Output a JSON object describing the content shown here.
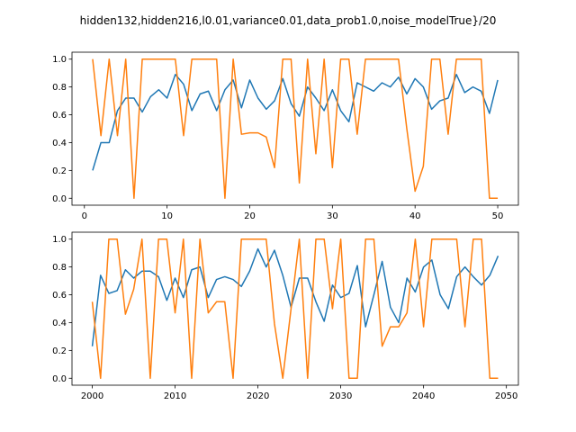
{
  "title": "hidden132,hidden216,l0.01,variance0.01,data_prob1.0,noise_modelTrue}/20",
  "colors": {
    "series_blue": "#1f77b4",
    "series_orange": "#ff7f0e"
  },
  "chart_data": [
    {
      "type": "line",
      "xlim": [
        -1.5,
        52.5
      ],
      "ylim": [
        -0.05,
        1.05
      ],
      "xticks": [
        0,
        10,
        20,
        30,
        40,
        50
      ],
      "yticks": [
        0.0,
        0.2,
        0.4,
        0.6,
        0.8,
        1.0
      ],
      "xtick_labels": [
        "0",
        "10",
        "20",
        "30",
        "40",
        "50"
      ],
      "ytick_labels": [
        "0.0",
        "0.2",
        "0.4",
        "0.6",
        "0.8",
        "1.0"
      ],
      "x": [
        1,
        2,
        3,
        4,
        5,
        6,
        7,
        8,
        9,
        10,
        11,
        12,
        13,
        14,
        15,
        16,
        17,
        18,
        19,
        20,
        21,
        22,
        23,
        24,
        25,
        26,
        27,
        28,
        29,
        30,
        31,
        32,
        33,
        34,
        35,
        36,
        37,
        38,
        39,
        40,
        41,
        42,
        43,
        44,
        45,
        46,
        47,
        48,
        49,
        50
      ],
      "series": [
        {
          "values": [
            0.2,
            0.4,
            0.4,
            0.63,
            0.72,
            0.72,
            0.62,
            0.73,
            0.78,
            0.72,
            0.89,
            0.82,
            0.63,
            0.75,
            0.77,
            0.63,
            0.78,
            0.85,
            0.65,
            0.85,
            0.72,
            0.64,
            0.7,
            0.86,
            0.68,
            0.59,
            0.8,
            0.72,
            0.63,
            0.78,
            0.63,
            0.55,
            0.83,
            0.8,
            0.77,
            0.83,
            0.8,
            0.87,
            0.75,
            0.86,
            0.8,
            0.64,
            0.7,
            0.72,
            0.89,
            0.76,
            0.8,
            0.77,
            0.61,
            0.85
          ]
        },
        {
          "values": [
            1.0,
            0.45,
            1.0,
            0.45,
            1.0,
            0.0,
            1.0,
            1.0,
            1.0,
            1.0,
            1.0,
            0.45,
            1.0,
            1.0,
            1.0,
            1.0,
            0.0,
            1.0,
            0.46,
            0.47,
            0.47,
            0.44,
            0.22,
            1.0,
            1.0,
            0.11,
            1.0,
            0.32,
            1.0,
            0.22,
            1.0,
            1.0,
            0.46,
            1.0,
            1.0,
            1.0,
            1.0,
            1.0,
            0.5,
            0.05,
            0.23,
            1.0,
            1.0,
            0.46,
            1.0,
            1.0,
            1.0,
            1.0,
            0.0,
            0.0
          ]
        }
      ]
    },
    {
      "type": "line",
      "xlim": [
        1997.55,
        2051.45
      ],
      "ylim": [
        -0.05,
        1.05
      ],
      "xticks": [
        2000,
        2010,
        2020,
        2030,
        2040,
        2050
      ],
      "yticks": [
        0.0,
        0.2,
        0.4,
        0.6,
        0.8,
        1.0
      ],
      "xtick_labels": [
        "2000",
        "2010",
        "2020",
        "2030",
        "2040",
        "2050"
      ],
      "ytick_labels": [
        "0.0",
        "0.2",
        "0.4",
        "0.6",
        "0.8",
        "1.0"
      ],
      "x": [
        2000,
        2001,
        2002,
        2003,
        2004,
        2005,
        2006,
        2007,
        2008,
        2009,
        2010,
        2011,
        2012,
        2013,
        2014,
        2015,
        2016,
        2017,
        2018,
        2019,
        2020,
        2021,
        2022,
        2023,
        2024,
        2025,
        2026,
        2027,
        2028,
        2029,
        2030,
        2031,
        2032,
        2033,
        2034,
        2035,
        2036,
        2037,
        2038,
        2039,
        2040,
        2041,
        2042,
        2043,
        2044,
        2045,
        2046,
        2047,
        2048,
        2049
      ],
      "series": [
        {
          "values": [
            0.23,
            0.74,
            0.61,
            0.63,
            0.78,
            0.72,
            0.77,
            0.77,
            0.73,
            0.56,
            0.72,
            0.58,
            0.78,
            0.8,
            0.58,
            0.71,
            0.73,
            0.71,
            0.66,
            0.77,
            0.93,
            0.8,
            0.92,
            0.74,
            0.51,
            0.72,
            0.72,
            0.55,
            0.41,
            0.67,
            0.58,
            0.61,
            0.81,
            0.37,
            0.6,
            0.84,
            0.51,
            0.4,
            0.72,
            0.62,
            0.8,
            0.85,
            0.6,
            0.5,
            0.73,
            0.8,
            0.73,
            0.67,
            0.74,
            0.88
          ]
        },
        {
          "values": [
            0.55,
            0.0,
            1.0,
            1.0,
            0.46,
            0.64,
            1.0,
            0.0,
            1.0,
            1.0,
            0.47,
            1.0,
            0.0,
            1.0,
            0.47,
            0.55,
            0.55,
            0.0,
            1.0,
            1.0,
            1.0,
            1.0,
            0.39,
            0.0,
            0.5,
            1.0,
            0.0,
            1.0,
            1.0,
            0.5,
            1.0,
            0.0,
            0.0,
            1.0,
            1.0,
            0.23,
            0.37,
            0.37,
            0.47,
            1.0,
            0.37,
            1.0,
            1.0,
            1.0,
            1.0,
            0.37,
            1.0,
            1.0,
            0.0,
            0.0
          ]
        }
      ]
    }
  ]
}
